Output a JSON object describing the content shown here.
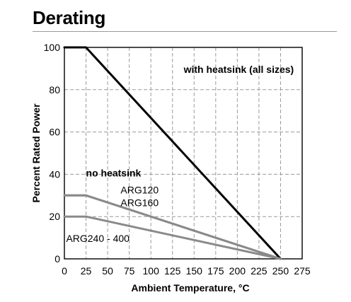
{
  "header": {
    "title": "Derating"
  },
  "chart_data": {
    "type": "line",
    "title": "",
    "xlabel": "Ambient Temperature, °C",
    "ylabel": "Percent Rated Power",
    "xlim": [
      0,
      275
    ],
    "ylim": [
      0,
      100
    ],
    "x_ticks": [
      0,
      25,
      50,
      75,
      100,
      125,
      150,
      175,
      200,
      225,
      250,
      275
    ],
    "y_ticks": [
      0,
      20,
      40,
      60,
      80,
      100
    ],
    "grid": "dashed",
    "legend": "none",
    "series": [
      {
        "name": "with heatsink (all sizes)",
        "color": "#000000",
        "x": [
          0,
          25,
          250
        ],
        "y": [
          100,
          100,
          0
        ]
      },
      {
        "name": "ARG120",
        "color": "#8a8a8a",
        "x": [
          0,
          25,
          250
        ],
        "y": [
          30,
          30,
          0
        ]
      },
      {
        "name": "ARG160",
        "color": "#8a8a8a",
        "x": [
          0,
          25,
          250
        ],
        "y": [
          30,
          30,
          0
        ]
      },
      {
        "name": "ARG240 - 400",
        "color": "#8a8a8a",
        "x": [
          0,
          25,
          250
        ],
        "y": [
          20,
          20,
          0
        ]
      }
    ],
    "annotations": [
      {
        "text": "with heatsink (all sizes)",
        "bold": true,
        "x": 138,
        "y": 88
      },
      {
        "text": "no heatsink",
        "bold": true,
        "x": 25,
        "y": 39
      },
      {
        "text": "ARG120",
        "bold": false,
        "x": 65,
        "y": 31
      },
      {
        "text": "ARG160",
        "bold": false,
        "x": 65,
        "y": 25
      },
      {
        "text": "ARG240 - 400",
        "bold": false,
        "x": 2,
        "y": 8
      }
    ]
  }
}
